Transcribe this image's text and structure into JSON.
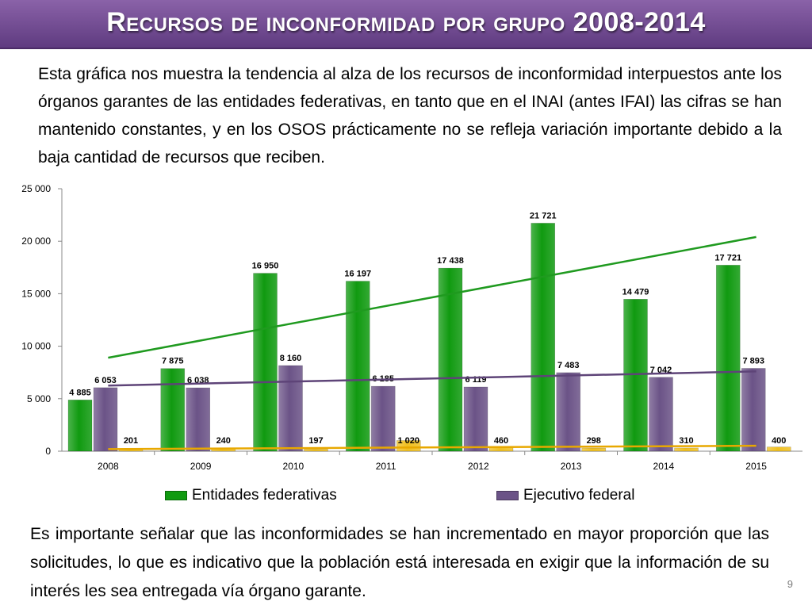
{
  "slide": {
    "title": "Recursos de inconformidad por grupo 2008-2014",
    "paragraph_top": "Esta gráfica nos muestra la tendencia al alza de los recursos de inconformidad interpuestos ante los órganos garantes de las entidades federativas, en tanto que en el INAI (antes IFAI) las cifras se han mantenido constantes, y en los OSOS prácticamente no se refleja variación importante debido a la baja cantidad de recursos que reciben.",
    "paragraph_bottom": "Es importante señalar que las inconformidades se han incrementado en mayor proporción que las solicitudes, lo que es indicativo que la población está interesada en exigir que la información de su interés les sea entregada vía órgano garante.",
    "page_number": "9"
  },
  "colors": {
    "title_bar": "#6f4c92",
    "entidades": "#109a10",
    "ejecutivo": "#6b5387",
    "osos": "#f0c020",
    "trend_entidades": "#1f9a1f",
    "trend_ejecutivo": "#5e4478",
    "trend_osos": "#e8a800"
  },
  "chart_data": {
    "type": "bar",
    "categories": [
      "2008",
      "2009",
      "2010",
      "2011",
      "2012",
      "2013",
      "2014",
      "2015"
    ],
    "series": [
      {
        "name": "Entidades federativas",
        "values": [
          4885,
          7875,
          16950,
          16197,
          17438,
          21721,
          14479,
          17721
        ],
        "labels": [
          "4 885",
          "7 875",
          "16 950",
          "16 197",
          "17 438",
          "21 721",
          "14 479",
          "17 721"
        ]
      },
      {
        "name": "Ejecutivo federal",
        "values": [
          6053,
          6038,
          8160,
          6185,
          6119,
          7483,
          7042,
          7893
        ],
        "labels": [
          "6 053",
          "6 038",
          "8 160",
          "6 185",
          "6 119",
          "7 483",
          "7 042",
          "7 893"
        ]
      },
      {
        "values": [
          201,
          240,
          197,
          1020,
          460,
          298,
          310,
          400
        ],
        "labels": [
          "201",
          "240",
          "197",
          "1 020",
          "460",
          "298",
          "310",
          "400"
        ]
      }
    ],
    "trendlines": [
      {
        "series": "Entidades federativas",
        "from": 8900,
        "to": 20400
      },
      {
        "series": "Ejecutivo federal",
        "from": 6250,
        "to": 7600
      },
      {
        "series": 2,
        "from": 200,
        "to": 520
      }
    ],
    "ylim": [
      0,
      25000
    ],
    "yticks": [
      0,
      5000,
      10000,
      15000,
      20000,
      25000
    ],
    "ytick_labels": [
      "0",
      "5 000",
      "10 000",
      "15 000",
      "20 000",
      "25 000"
    ],
    "legend_position": "bottom"
  }
}
